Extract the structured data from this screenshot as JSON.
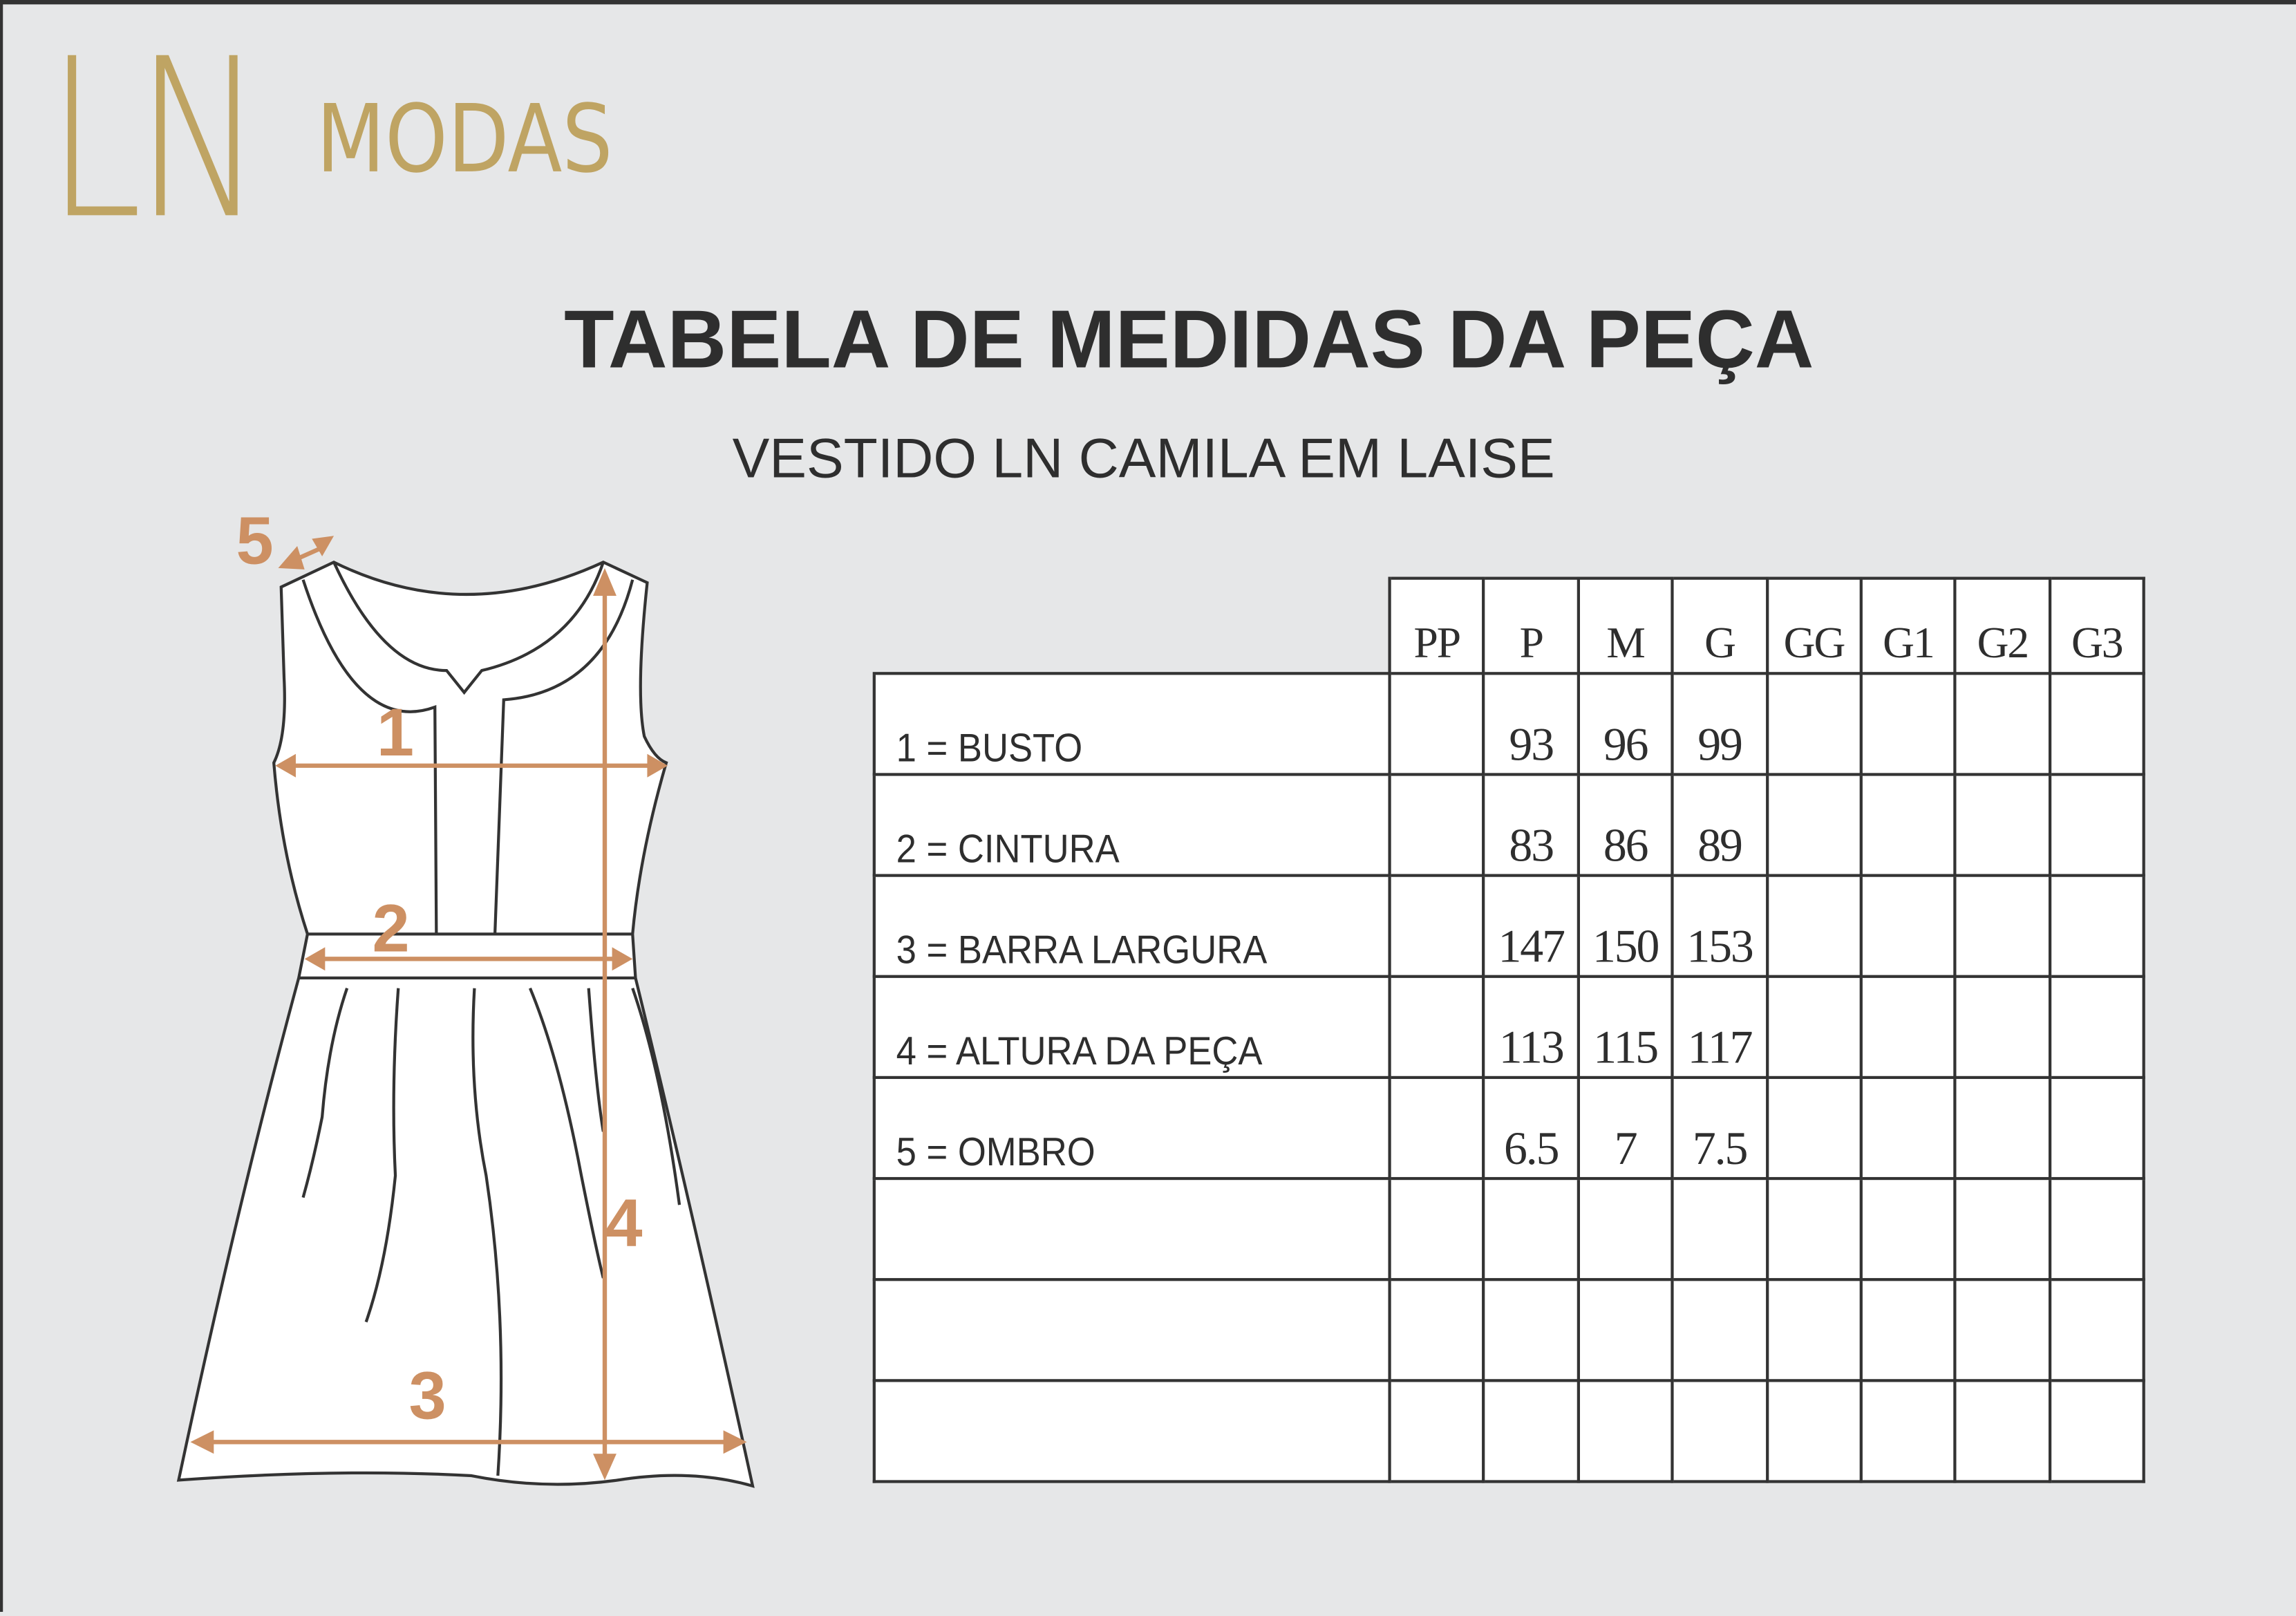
{
  "logo": {
    "mark": "LN",
    "word": "MODAS",
    "color": "#bfa463"
  },
  "title": "TABELA DE MEDIDAS DA PEÇA",
  "subtitle": "VESTIDO LN CAMILA EM LAISE",
  "accent_color": "#cd9063",
  "diagram": {
    "labels": [
      "1",
      "2",
      "3",
      "4",
      "5"
    ]
  },
  "table": {
    "sizes": [
      "PP",
      "P",
      "M",
      "G",
      "GG",
      "G1",
      "G2",
      "G3"
    ],
    "rows": [
      {
        "label": "1 = BUSTO",
        "values": [
          "",
          "93",
          "96",
          "99",
          "",
          "",
          "",
          ""
        ]
      },
      {
        "label": "2 = CINTURA",
        "values": [
          "",
          "83",
          "86",
          "89",
          "",
          "",
          "",
          ""
        ]
      },
      {
        "label": "3 = BARRA LARGURA",
        "values": [
          "",
          "147",
          "150",
          "153",
          "",
          "",
          "",
          ""
        ]
      },
      {
        "label": "4 = ALTURA DA PEÇA",
        "values": [
          "",
          "113",
          "115",
          "117",
          "",
          "",
          "",
          ""
        ]
      },
      {
        "label": "5 = OMBRO",
        "values": [
          "",
          "6.5",
          "7",
          "7.5",
          "",
          "",
          "",
          ""
        ]
      },
      {
        "label": "",
        "values": [
          "",
          "",
          "",
          "",
          "",
          "",
          "",
          ""
        ]
      },
      {
        "label": "",
        "values": [
          "",
          "",
          "",
          "",
          "",
          "",
          "",
          ""
        ]
      },
      {
        "label": "",
        "values": [
          "",
          "",
          "",
          "",
          "",
          "",
          "",
          ""
        ]
      }
    ]
  }
}
